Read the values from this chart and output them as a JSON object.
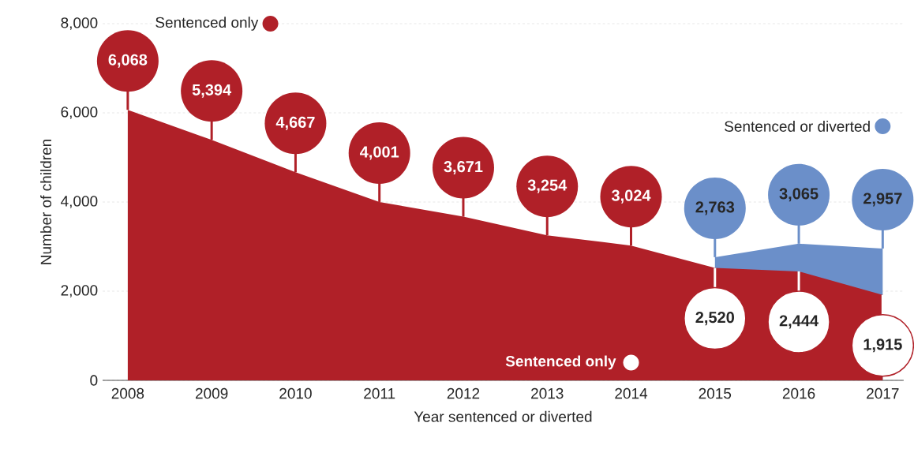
{
  "chart_data": {
    "type": "area",
    "xlabel": "Year sentenced or diverted",
    "ylabel": "Number of children",
    "x": [
      2008,
      2009,
      2010,
      2011,
      2012,
      2013,
      2014,
      2015,
      2016,
      2017
    ],
    "series": [
      {
        "name": "Sentenced or diverted",
        "color": "#6b8fc9",
        "values": [
          null,
          null,
          null,
          null,
          null,
          null,
          null,
          2763,
          3065,
          2957
        ],
        "value_labels": [
          null,
          null,
          null,
          null,
          null,
          null,
          null,
          "2,763",
          "3,065",
          "2,957"
        ]
      },
      {
        "name": "Sentenced only",
        "color": "#b02028",
        "values": [
          6068,
          5394,
          4667,
          4001,
          3671,
          3254,
          3024,
          2520,
          2444,
          1915
        ],
        "value_labels": [
          "6,068",
          "5,394",
          "4,667",
          "4,001",
          "3,671",
          "3,254",
          "3,024",
          "2,520",
          "2,444",
          "1,915"
        ]
      }
    ],
    "annotations": [
      "Sentenced only"
    ],
    "xlim": [
      2007.7,
      2017.25
    ],
    "ylim": [
      0,
      8000
    ],
    "xticks": [
      2008,
      2009,
      2010,
      2011,
      2012,
      2013,
      2014,
      2015,
      2016,
      2017
    ],
    "yticks": [
      0,
      {
        "value": 2000,
        "label": "2,000"
      },
      {
        "value": 4000,
        "label": "4,000"
      },
      {
        "value": 6000,
        "label": "6,000"
      },
      {
        "value": 8000,
        "label": "8,000"
      }
    ],
    "grid": "y",
    "legend": "top"
  }
}
